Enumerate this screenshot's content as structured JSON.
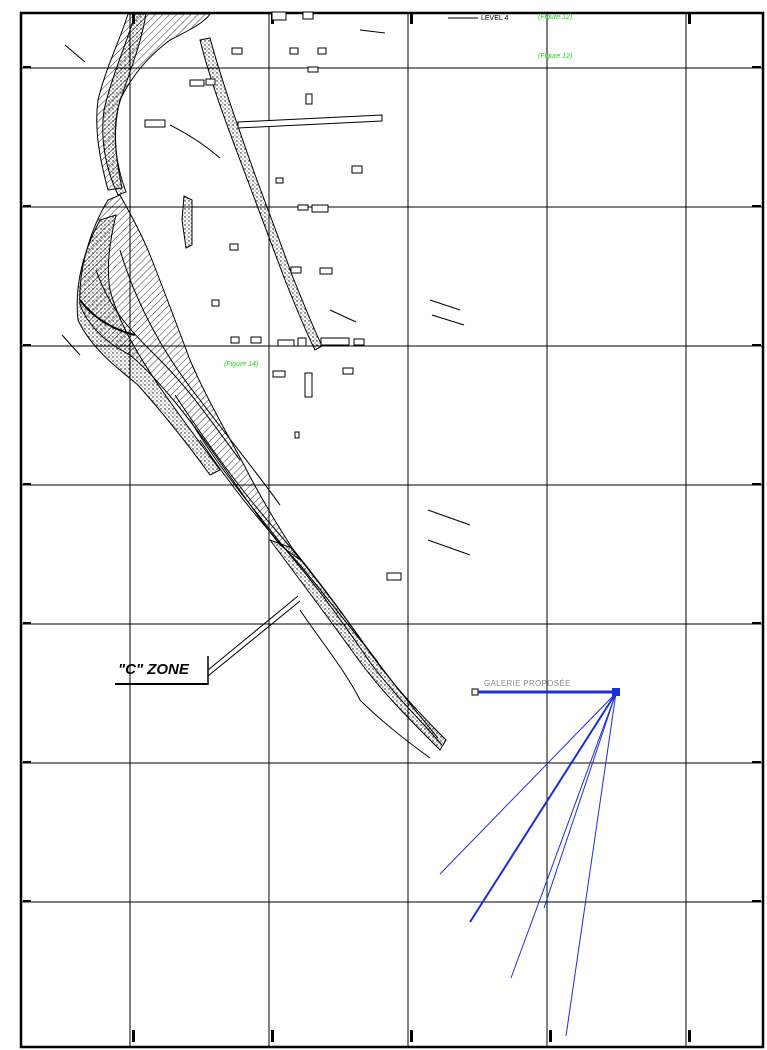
{
  "drawing": {
    "level_label": "LEVEL 4",
    "figure_ref_1": "(Figure 12)",
    "figure_ref_2": "(Figure 12)",
    "figure_ref_3": "(Figure 14)",
    "zone_label": "\"C\" ZONE",
    "gallery_label": "GALERIE PROPOSÉE"
  },
  "colors": {
    "ink": "#000000",
    "annotation": "#22cc22",
    "drill_holes": "#1a2fd8",
    "gallery": "#1a2fd8",
    "gallery_text": "#8a8a8a"
  },
  "drill_hole_count": 5
}
